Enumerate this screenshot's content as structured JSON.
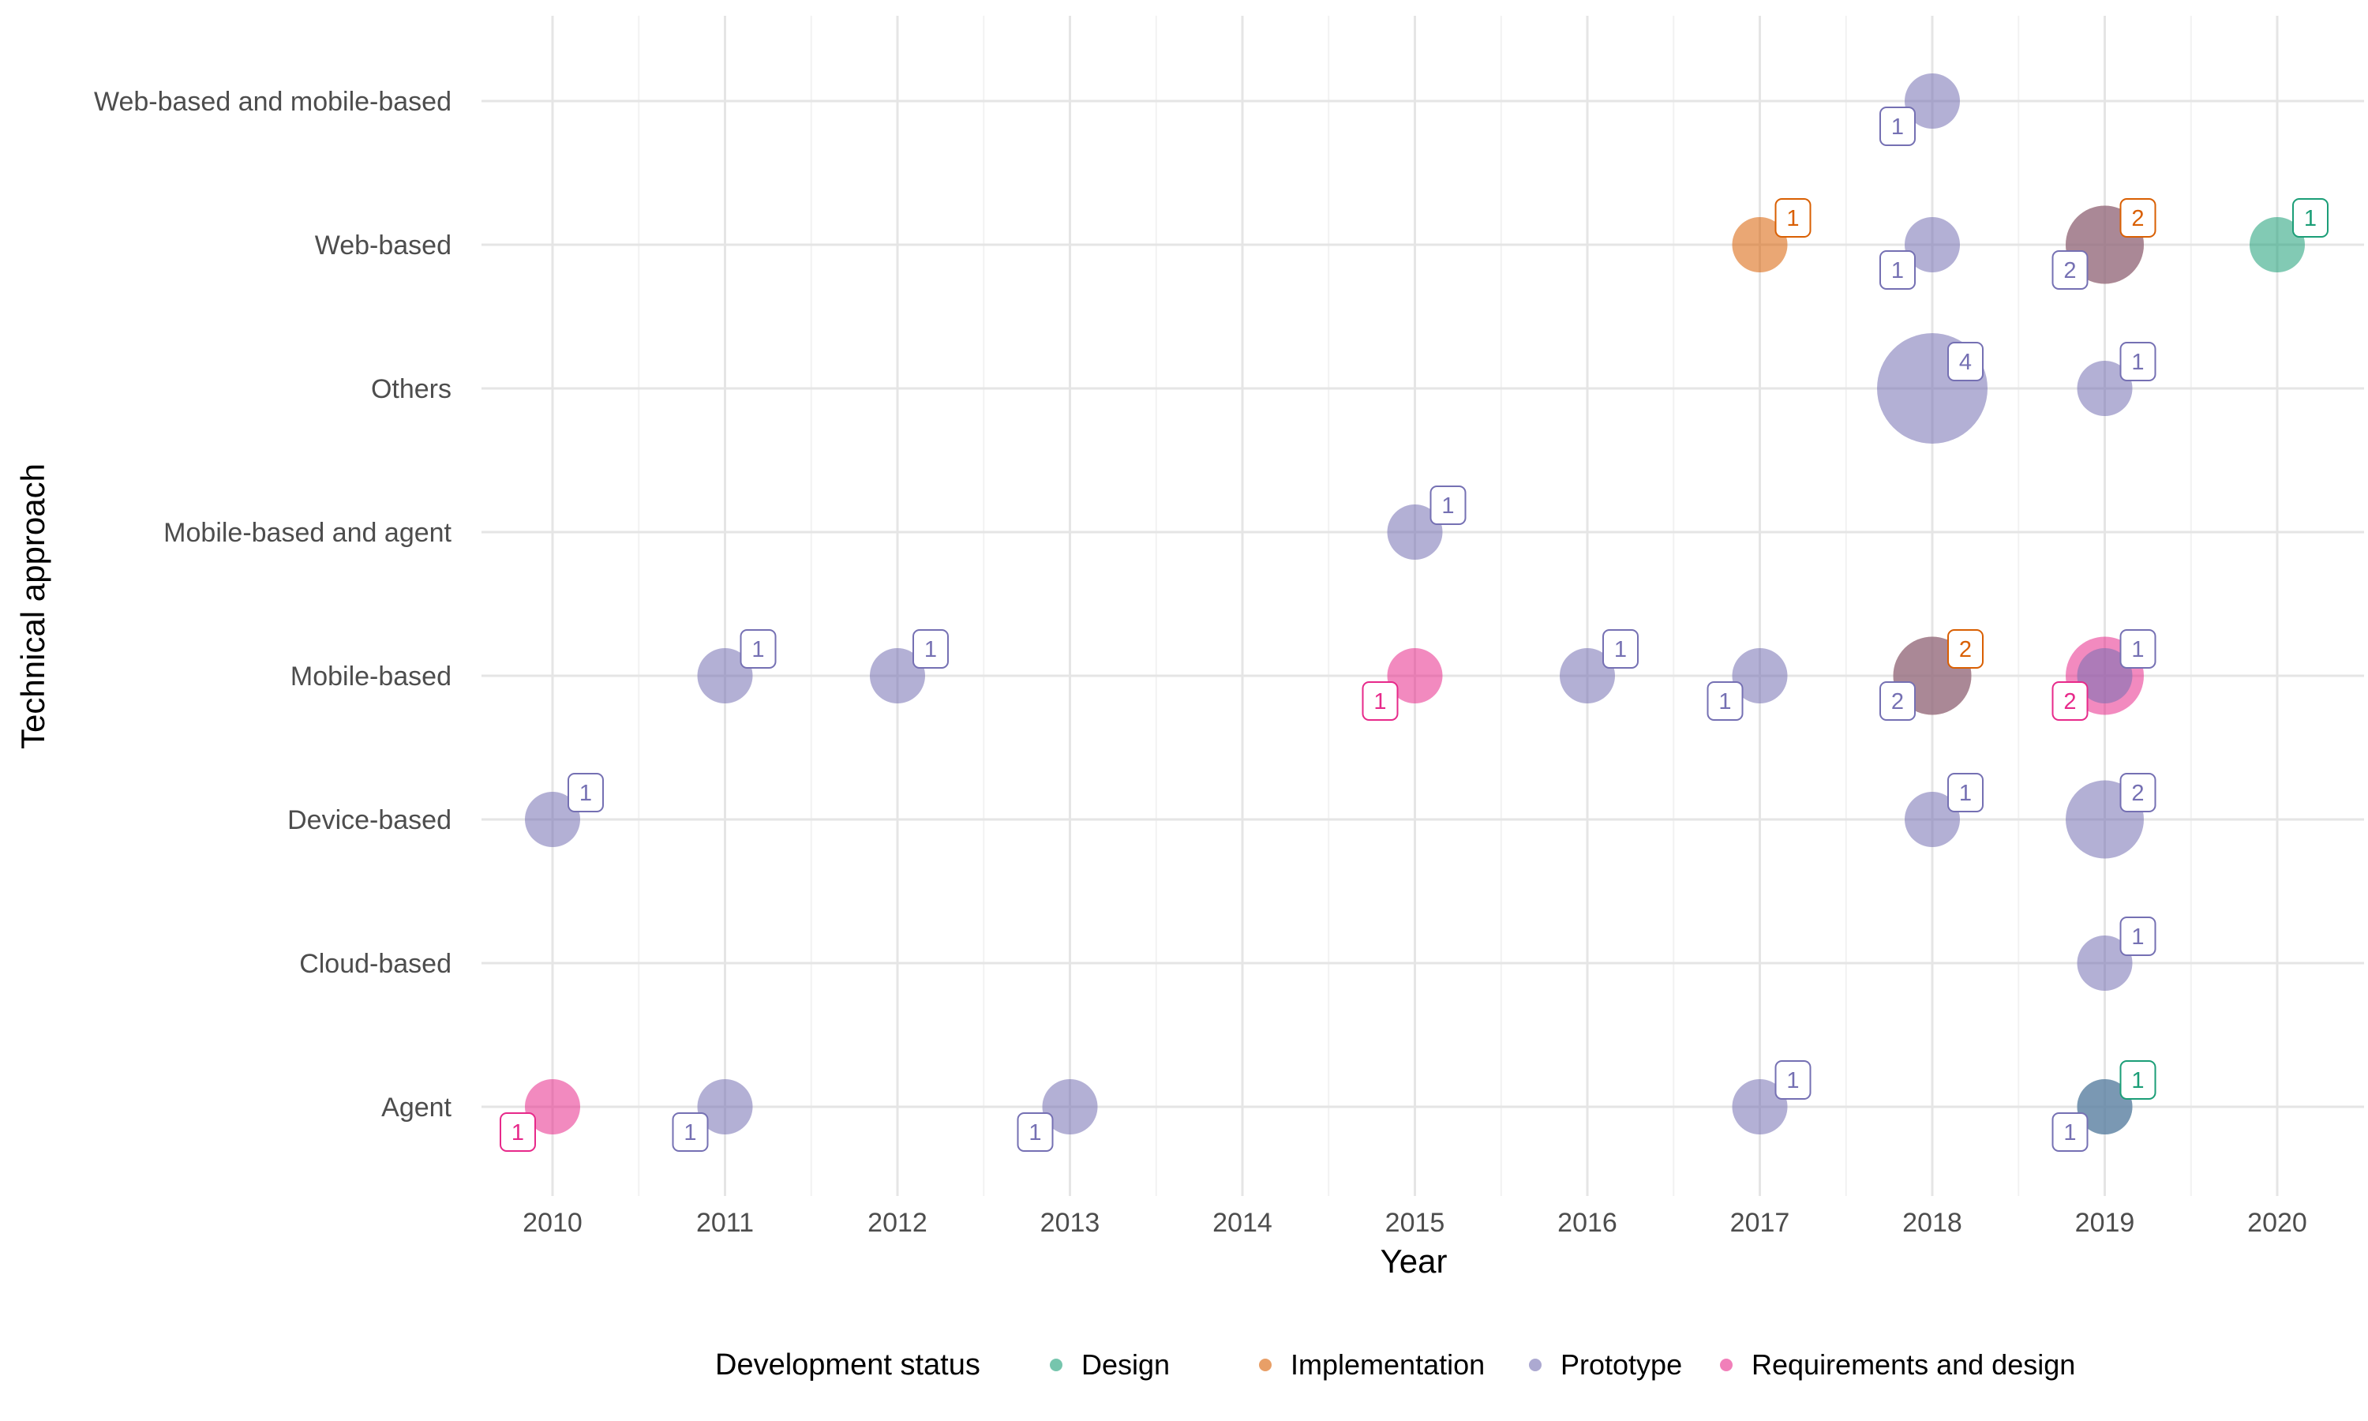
{
  "chart_data": {
    "type": "scatter",
    "title": "",
    "xlabel": "Year",
    "ylabel": "Technical approach",
    "xlim": [
      2009.6,
      2020.5
    ],
    "x_ticks": [
      "2010",
      "2011",
      "2012",
      "2013",
      "2014",
      "2015",
      "2016",
      "2017",
      "2018",
      "2019",
      "2020"
    ],
    "categories": [
      "Agent",
      "Cloud-based",
      "Device-based",
      "Mobile-based",
      "Mobile-based and agent",
      "Others",
      "Web-based",
      "Web-based and mobile-based"
    ],
    "grid": true,
    "legend": {
      "title": "Development status",
      "position": "bottom",
      "entries": [
        "Design",
        "Implementation",
        "Prototype",
        "Requirements and design"
      ]
    },
    "colors": {
      "Design": "#1b9e77",
      "Implementation": "#d95f02",
      "Prototype": "#7570b3",
      "Requirements and design": "#e7298a"
    },
    "series": [
      {
        "name": "Design",
        "points": [
          {
            "x": 2020,
            "y": "Web-based",
            "count": 1,
            "label": "1"
          },
          {
            "x": 2019,
            "y": "Agent",
            "count": 1,
            "label": "1"
          }
        ]
      },
      {
        "name": "Implementation",
        "points": [
          {
            "x": 2017,
            "y": "Web-based",
            "count": 1,
            "label": "1"
          },
          {
            "x": 2019,
            "y": "Web-based",
            "count": 2,
            "label": "2"
          },
          {
            "x": 2018,
            "y": "Mobile-based",
            "count": 2,
            "label": "2"
          }
        ]
      },
      {
        "name": "Prototype",
        "points": [
          {
            "x": 2018,
            "y": "Web-based and mobile-based",
            "count": 1,
            "label": "1"
          },
          {
            "x": 2018,
            "y": "Web-based",
            "count": 1,
            "label": "1"
          },
          {
            "x": 2019,
            "y": "Web-based",
            "count": 2,
            "label": "2"
          },
          {
            "x": 2018,
            "y": "Others",
            "count": 4,
            "label": "4"
          },
          {
            "x": 2019,
            "y": "Others",
            "count": 1,
            "label": "1"
          },
          {
            "x": 2015,
            "y": "Mobile-based and agent",
            "count": 1,
            "label": "1"
          },
          {
            "x": 2011,
            "y": "Mobile-based",
            "count": 1,
            "label": "1"
          },
          {
            "x": 2012,
            "y": "Mobile-based",
            "count": 1,
            "label": "1"
          },
          {
            "x": 2016,
            "y": "Mobile-based",
            "count": 1,
            "label": "1"
          },
          {
            "x": 2017,
            "y": "Mobile-based",
            "count": 1,
            "label": "1"
          },
          {
            "x": 2018,
            "y": "Mobile-based",
            "count": 2,
            "label": "2"
          },
          {
            "x": 2019,
            "y": "Mobile-based",
            "count": 1,
            "label": "1"
          },
          {
            "x": 2010,
            "y": "Device-based",
            "count": 1,
            "label": "1"
          },
          {
            "x": 2018,
            "y": "Device-based",
            "count": 1,
            "label": "1"
          },
          {
            "x": 2019,
            "y": "Device-based",
            "count": 2,
            "label": "2"
          },
          {
            "x": 2019,
            "y": "Cloud-based",
            "count": 1,
            "label": "1"
          },
          {
            "x": 2011,
            "y": "Agent",
            "count": 1,
            "label": "1"
          },
          {
            "x": 2013,
            "y": "Agent",
            "count": 1,
            "label": "1"
          },
          {
            "x": 2017,
            "y": "Agent",
            "count": 1,
            "label": "1"
          },
          {
            "x": 2019,
            "y": "Agent",
            "count": 1,
            "label": "1"
          }
        ]
      },
      {
        "name": "Requirements and design",
        "points": [
          {
            "x": 2015,
            "y": "Mobile-based",
            "count": 1,
            "label": "1"
          },
          {
            "x": 2019,
            "y": "Mobile-based",
            "count": 2,
            "label": "2"
          },
          {
            "x": 2010,
            "y": "Agent",
            "count": 1,
            "label": "1"
          }
        ]
      }
    ]
  }
}
